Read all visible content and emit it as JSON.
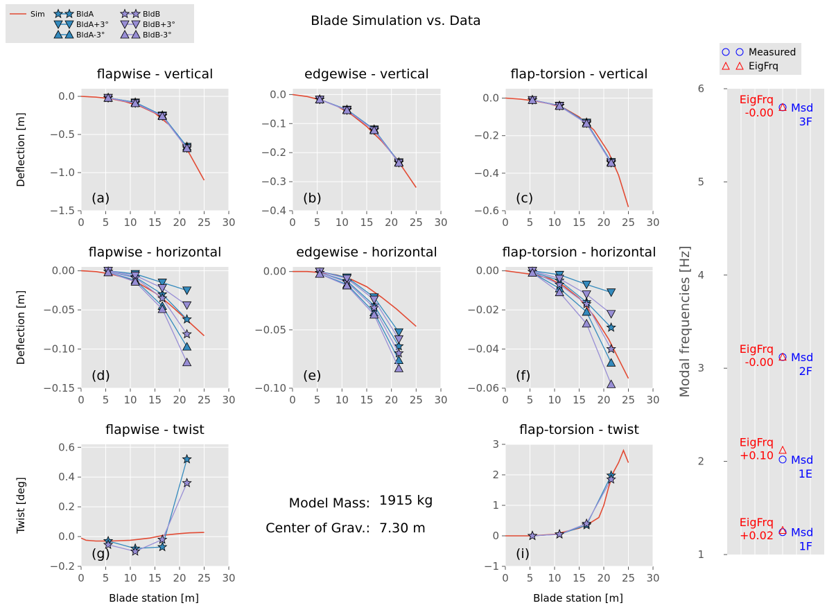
{
  "figure": {
    "title": "Blade Simulation vs. Data",
    "xlabel": "Blade station [m]",
    "model_mass_label": "Model Mass:",
    "model_mass_value": "1915 kg",
    "cog_label": "Center of Grav.:",
    "cog_value": "7.30 m"
  },
  "legend": {
    "items": [
      {
        "key": "sim",
        "label": "Sim",
        "color": "#e24a33",
        "marker": "line"
      },
      {
        "key": "bldA",
        "label": "BldA",
        "color": "#348abd",
        "marker": "star"
      },
      {
        "key": "bldA_p3",
        "label": "BldA+3°",
        "color": "#348abd",
        "marker": "tri-down"
      },
      {
        "key": "bldA_m3",
        "label": "BldA-3°",
        "color": "#348abd",
        "marker": "tri-up"
      },
      {
        "key": "bldB",
        "label": "BldB",
        "color": "#988ed5",
        "marker": "star"
      },
      {
        "key": "bldB_p3",
        "label": "BldB+3°",
        "color": "#988ed5",
        "marker": "tri-down"
      },
      {
        "key": "bldB_m3",
        "label": "BldB-3°",
        "color": "#988ed5",
        "marker": "tri-up"
      }
    ]
  },
  "colors": {
    "sim": "#e24a33",
    "bldA": "#348abd",
    "bldB": "#988ed5",
    "panel_bg": "#e5e5e5",
    "grid": "#ffffff",
    "measured": "#0000ff",
    "eig": "#ff0000"
  },
  "chart_data": [
    {
      "id": "a",
      "type": "line",
      "title": "flapwise - vertical",
      "panel_label": "(a)",
      "ylabel": "Deflection [m]",
      "xlim": [
        0,
        30
      ],
      "ylim": [
        -1.5,
        0.1
      ],
      "xticks": [
        "0",
        "5",
        "10",
        "15",
        "20",
        "25",
        "30"
      ],
      "yticks": [
        {
          "v": 0,
          "t": "0.0"
        },
        {
          "v": -0.5,
          "t": "−0.5"
        },
        {
          "v": -1.0,
          "t": "−1.0"
        },
        {
          "v": -1.5,
          "t": "−1.5"
        }
      ],
      "sim": {
        "x": [
          0,
          3,
          6,
          9,
          12,
          15,
          18,
          20,
          22,
          25
        ],
        "y": [
          0,
          -0.01,
          -0.03,
          -0.07,
          -0.13,
          -0.22,
          -0.38,
          -0.55,
          -0.75,
          -1.1
        ]
      },
      "x": [
        5.5,
        11,
        16.5,
        21.5
      ],
      "series": [
        {
          "key": "bldA",
          "name": "BldA",
          "y": [
            -0.02,
            -0.08,
            -0.25,
            -0.66
          ]
        },
        {
          "key": "bldA_p3",
          "name": "BldA+3°",
          "y": [
            -0.02,
            -0.08,
            -0.25,
            -0.66
          ]
        },
        {
          "key": "bldA_m3",
          "name": "BldA-3°",
          "y": [
            -0.02,
            -0.08,
            -0.25,
            -0.66
          ]
        },
        {
          "key": "bldB",
          "name": "BldB",
          "y": [
            -0.02,
            -0.09,
            -0.26,
            -0.68
          ]
        },
        {
          "key": "bldB_p3",
          "name": "BldB+3°",
          "y": [
            -0.02,
            -0.09,
            -0.26,
            -0.68
          ]
        },
        {
          "key": "bldB_m3",
          "name": "BldB-3°",
          "y": [
            -0.02,
            -0.09,
            -0.26,
            -0.68
          ]
        }
      ]
    },
    {
      "id": "b",
      "type": "line",
      "title": "edgewise - vertical",
      "panel_label": "(b)",
      "ylabel": "",
      "xlim": [
        0,
        30
      ],
      "ylim": [
        -0.4,
        0.02
      ],
      "xticks": [
        "0",
        "5",
        "10",
        "15",
        "20",
        "25",
        "30"
      ],
      "yticks": [
        {
          "v": 0,
          "t": "0.0"
        },
        {
          "v": -0.1,
          "t": "−0.1"
        },
        {
          "v": -0.2,
          "t": "−0.2"
        },
        {
          "v": -0.3,
          "t": "−0.3"
        },
        {
          "v": -0.4,
          "t": "−0.4"
        }
      ],
      "sim": {
        "x": [
          0,
          3,
          6,
          9,
          12,
          15,
          18,
          21,
          25
        ],
        "y": [
          0,
          -0.007,
          -0.02,
          -0.04,
          -0.07,
          -0.11,
          -0.16,
          -0.22,
          -0.32
        ]
      },
      "x": [
        5.5,
        11,
        16.5,
        21.5
      ],
      "series": [
        {
          "key": "bldA",
          "name": "BldA",
          "y": [
            -0.017,
            -0.052,
            -0.12,
            -0.233
          ]
        },
        {
          "key": "bldA_p3",
          "name": "BldA+3°",
          "y": [
            -0.017,
            -0.052,
            -0.12,
            -0.233
          ]
        },
        {
          "key": "bldA_m3",
          "name": "BldA-3°",
          "y": [
            -0.017,
            -0.052,
            -0.12,
            -0.233
          ]
        },
        {
          "key": "bldB",
          "name": "BldB",
          "y": [
            -0.017,
            -0.054,
            -0.123,
            -0.235
          ]
        },
        {
          "key": "bldB_p3",
          "name": "BldB+3°",
          "y": [
            -0.017,
            -0.054,
            -0.123,
            -0.235
          ]
        },
        {
          "key": "bldB_m3",
          "name": "BldB-3°",
          "y": [
            -0.017,
            -0.054,
            -0.123,
            -0.235
          ]
        }
      ]
    },
    {
      "id": "c",
      "type": "line",
      "title": "flap-torsion - vertical",
      "panel_label": "(c)",
      "ylabel": "",
      "xlim": [
        0,
        30
      ],
      "ylim": [
        -0.6,
        0.05
      ],
      "xticks": [
        "0",
        "5",
        "10",
        "15",
        "20",
        "25",
        "30"
      ],
      "yticks": [
        {
          "v": 0,
          "t": "0.0"
        },
        {
          "v": -0.2,
          "t": "−0.2"
        },
        {
          "v": -0.4,
          "t": "−0.4"
        },
        {
          "v": -0.6,
          "t": "−0.6"
        }
      ],
      "sim": {
        "x": [
          0,
          3,
          6,
          9,
          12,
          15,
          18,
          21,
          23,
          25
        ],
        "y": [
          0,
          -0.005,
          -0.015,
          -0.03,
          -0.055,
          -0.1,
          -0.17,
          -0.29,
          -0.41,
          -0.58
        ]
      },
      "x": [
        5.5,
        11,
        16.5,
        21.5
      ],
      "series": [
        {
          "key": "bldA",
          "name": "BldA",
          "y": [
            -0.01,
            -0.04,
            -0.13,
            -0.34
          ]
        },
        {
          "key": "bldA_p3",
          "name": "BldA+3°",
          "y": [
            -0.01,
            -0.04,
            -0.13,
            -0.34
          ]
        },
        {
          "key": "bldA_m3",
          "name": "BldA-3°",
          "y": [
            -0.01,
            -0.04,
            -0.13,
            -0.34
          ]
        },
        {
          "key": "bldB",
          "name": "BldB",
          "y": [
            -0.01,
            -0.042,
            -0.135,
            -0.345
          ]
        },
        {
          "key": "bldB_p3",
          "name": "BldB+3°",
          "y": [
            -0.01,
            -0.042,
            -0.135,
            -0.345
          ]
        },
        {
          "key": "bldB_m3",
          "name": "BldB-3°",
          "y": [
            -0.01,
            -0.042,
            -0.135,
            -0.345
          ]
        }
      ]
    },
    {
      "id": "d",
      "type": "line",
      "title": "flapwise - horizontal",
      "panel_label": "(d)",
      "ylabel": "Deflection [m]",
      "xlim": [
        0,
        30
      ],
      "ylim": [
        -0.15,
        0.005
      ],
      "xticks": [
        "0",
        "5",
        "10",
        "15",
        "20",
        "25",
        "30"
      ],
      "yticks": [
        {
          "v": 0,
          "t": "0.00"
        },
        {
          "v": -0.05,
          "t": "−0.05"
        },
        {
          "v": -0.1,
          "t": "−0.10"
        },
        {
          "v": -0.15,
          "t": "−0.15"
        }
      ],
      "sim": {
        "x": [
          0,
          3,
          6,
          9,
          12,
          15,
          18,
          21,
          25
        ],
        "y": [
          0,
          -0.001,
          -0.004,
          -0.009,
          -0.017,
          -0.028,
          -0.043,
          -0.06,
          -0.083
        ]
      },
      "x": [
        5.5,
        11,
        16.5,
        21.5
      ],
      "series": [
        {
          "key": "bldA",
          "name": "BldA",
          "y": [
            -0.001,
            -0.008,
            -0.03,
            -0.062
          ]
        },
        {
          "key": "bldA_p3",
          "name": "BldA+3°",
          "y": [
            0,
            -0.004,
            -0.015,
            -0.025
          ]
        },
        {
          "key": "bldA_m3",
          "name": "BldA-3°",
          "y": [
            -0.002,
            -0.012,
            -0.045,
            -0.097
          ]
        },
        {
          "key": "bldB",
          "name": "BldB",
          "y": [
            -0.001,
            -0.009,
            -0.035,
            -0.081
          ]
        },
        {
          "key": "bldB_p3",
          "name": "BldB+3°",
          "y": [
            0,
            -0.006,
            -0.022,
            -0.044
          ]
        },
        {
          "key": "bldB_m3",
          "name": "BldB-3°",
          "y": [
            -0.002,
            -0.014,
            -0.049,
            -0.117
          ]
        }
      ]
    },
    {
      "id": "e",
      "type": "line",
      "title": "edgewise - horizontal",
      "panel_label": "(e)",
      "ylabel": "",
      "xlim": [
        0,
        30
      ],
      "ylim": [
        -0.1,
        0.004
      ],
      "xticks": [
        "0",
        "5",
        "10",
        "15",
        "20",
        "25",
        "30"
      ],
      "yticks": [
        {
          "v": 0,
          "t": "0.00"
        },
        {
          "v": -0.05,
          "t": "−0.05"
        },
        {
          "v": -0.1,
          "t": "−0.10"
        }
      ],
      "sim": {
        "x": [
          0,
          3,
          6,
          9,
          12,
          15,
          18,
          21,
          25
        ],
        "y": [
          0,
          0,
          -0.001,
          -0.003,
          -0.007,
          -0.013,
          -0.022,
          -0.032,
          -0.047
        ]
      },
      "x": [
        5.5,
        11,
        16.5,
        21.5
      ],
      "series": [
        {
          "key": "bldA",
          "name": "BldA",
          "y": [
            -0.001,
            -0.008,
            -0.029,
            -0.064
          ]
        },
        {
          "key": "bldA_p3",
          "name": "BldA+3°",
          "y": [
            0,
            -0.005,
            -0.022,
            -0.052
          ]
        },
        {
          "key": "bldA_m3",
          "name": "BldA-3°",
          "y": [
            -0.002,
            -0.011,
            -0.035,
            -0.076
          ]
        },
        {
          "key": "bldB",
          "name": "BldB",
          "y": [
            -0.001,
            -0.009,
            -0.031,
            -0.07
          ]
        },
        {
          "key": "bldB_p3",
          "name": "BldB+3°",
          "y": [
            0,
            -0.006,
            -0.024,
            -0.058
          ]
        },
        {
          "key": "bldB_m3",
          "name": "BldB-3°",
          "y": [
            -0.002,
            -0.012,
            -0.037,
            -0.083
          ]
        }
      ]
    },
    {
      "id": "f",
      "type": "line",
      "title": "flap-torsion - horizontal",
      "panel_label": "(f)",
      "ylabel": "",
      "xlim": [
        0,
        30
      ],
      "ylim": [
        -0.06,
        0.002
      ],
      "xticks": [
        "0",
        "5",
        "10",
        "15",
        "20",
        "25",
        "30"
      ],
      "yticks": [
        {
          "v": 0,
          "t": "0.00"
        },
        {
          "v": -0.02,
          "t": "−0.02"
        },
        {
          "v": -0.04,
          "t": "−0.04"
        },
        {
          "v": -0.06,
          "t": "−0.06"
        }
      ],
      "sim": {
        "x": [
          0,
          3,
          6,
          9,
          12,
          15,
          18,
          21,
          23,
          25
        ],
        "y": [
          0,
          -0.001,
          -0.002,
          -0.004,
          -0.008,
          -0.014,
          -0.023,
          -0.035,
          -0.045,
          -0.055
        ]
      },
      "x": [
        5.5,
        11,
        16.5,
        21.5
      ],
      "series": [
        {
          "key": "bldA",
          "name": "BldA",
          "y": [
            -0.0005,
            -0.005,
            -0.016,
            -0.029
          ]
        },
        {
          "key": "bldA_p3",
          "name": "BldA+3°",
          "y": [
            0,
            -0.002,
            -0.007,
            -0.011
          ]
        },
        {
          "key": "bldA_m3",
          "name": "BldA-3°",
          "y": [
            -0.001,
            -0.009,
            -0.021,
            -0.047
          ]
        },
        {
          "key": "bldB",
          "name": "BldB",
          "y": [
            -0.0005,
            -0.007,
            -0.017,
            -0.04
          ]
        },
        {
          "key": "bldB_p3",
          "name": "BldB+3°",
          "y": [
            0,
            -0.004,
            -0.012,
            -0.022
          ]
        },
        {
          "key": "bldB_m3",
          "name": "BldB-3°",
          "y": [
            -0.001,
            -0.011,
            -0.027,
            -0.058
          ]
        }
      ]
    },
    {
      "id": "g",
      "type": "line",
      "title": "flapwise - twist",
      "panel_label": "(g)",
      "ylabel": "Twist [deg]",
      "xlim": [
        0,
        30
      ],
      "ylim": [
        -0.2,
        0.62
      ],
      "xticks": [
        "0",
        "5",
        "10",
        "15",
        "20",
        "25",
        "30"
      ],
      "yticks": [
        {
          "v": 0.6,
          "t": "0.6"
        },
        {
          "v": 0.4,
          "t": "0.4"
        },
        {
          "v": 0.2,
          "t": "0.2"
        },
        {
          "v": 0,
          "t": "0.0"
        },
        {
          "v": -0.2,
          "t": "−0.2"
        }
      ],
      "sim": {
        "x": [
          0,
          1,
          3,
          6,
          10,
          14,
          17,
          20,
          22,
          25
        ],
        "y": [
          -0.01,
          -0.025,
          -0.03,
          -0.03,
          -0.025,
          -0.01,
          0.01,
          0.02,
          0.025,
          0.028
        ]
      },
      "x": [
        5.5,
        11,
        16.5,
        21.5
      ],
      "series": [
        {
          "key": "bldA",
          "name": "BldA",
          "y": [
            -0.03,
            -0.08,
            -0.07,
            0.52
          ]
        },
        {
          "key": "bldB",
          "name": "BldB",
          "y": [
            -0.055,
            -0.1,
            -0.02,
            0.36
          ]
        }
      ]
    },
    {
      "id": "i",
      "type": "line",
      "title": "flap-torsion - twist",
      "panel_label": "(i)",
      "ylabel": "",
      "xlim": [
        0,
        30
      ],
      "ylim": [
        -1,
        3
      ],
      "xticks": [
        "0",
        "5",
        "10",
        "15",
        "20",
        "25",
        "30"
      ],
      "yticks": [
        {
          "v": 3,
          "t": "3"
        },
        {
          "v": 2,
          "t": "2"
        },
        {
          "v": 1,
          "t": "1"
        },
        {
          "v": 0,
          "t": "0"
        },
        {
          "v": -1,
          "t": "−1"
        }
      ],
      "sim": {
        "x": [
          0,
          5,
          10,
          15,
          17,
          19,
          20,
          21,
          22,
          23,
          24,
          25
        ],
        "y": [
          0,
          0,
          0.05,
          0.25,
          0.4,
          0.6,
          1,
          1.6,
          2.1,
          2.4,
          2.8,
          2.4
        ]
      },
      "x": [
        5.5,
        11,
        16.5,
        21.5
      ],
      "series": [
        {
          "key": "bldA",
          "name": "BldA",
          "y": [
            0,
            0.05,
            0.35,
            1.98
          ]
        },
        {
          "key": "bldB",
          "name": "BldB",
          "y": [
            0,
            0.05,
            0.4,
            1.85
          ]
        }
      ]
    },
    {
      "id": "freq",
      "type": "scatter",
      "title": "",
      "ylabel": "Modal frequencies [Hz]",
      "ylim": [
        1,
        6
      ],
      "yticks": [
        {
          "v": 1,
          "t": "1"
        },
        {
          "v": 2,
          "t": "2"
        },
        {
          "v": 3,
          "t": "3"
        },
        {
          "v": 4,
          "t": "4"
        },
        {
          "v": 5,
          "t": "5"
        },
        {
          "v": 6,
          "t": "6"
        }
      ],
      "legend": [
        {
          "label": "Measured",
          "marker": "circle"
        },
        {
          "label": "EigFrq",
          "marker": "triangle"
        }
      ],
      "modes": [
        {
          "measured": 1.24,
          "eig": 1.26,
          "eig_label": "EigFrq",
          "diff": "+0.02",
          "msd_label": "Msd",
          "mode": "1F"
        },
        {
          "measured": 2.02,
          "eig": 2.12,
          "eig_label": "EigFrq",
          "diff": "+0.10",
          "msd_label": "Msd",
          "mode": "1E"
        },
        {
          "measured": 3.12,
          "eig": 3.12,
          "eig_label": "EigFrq",
          "diff": "-0.00",
          "msd_label": "Msd",
          "mode": "2F"
        },
        {
          "measured": 5.8,
          "eig": 5.8,
          "eig_label": "EigFrq",
          "diff": "-0.00",
          "msd_label": "Msd",
          "mode": "3F"
        }
      ]
    }
  ]
}
